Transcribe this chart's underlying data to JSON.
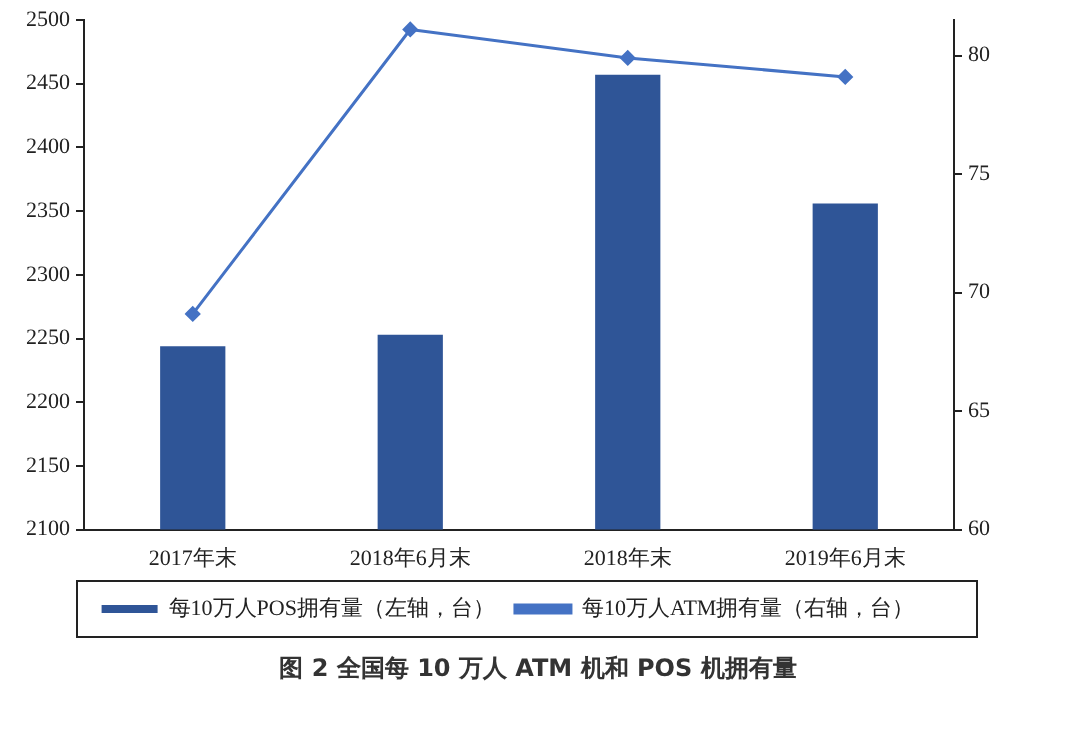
{
  "chart_data": {
    "type": "bar",
    "title": "图 2 全国每 10 万人 ATM 机和 POS 机拥有量",
    "categories": [
      "2017年末",
      "2018年6月末",
      "2018年末",
      "2019年6月末"
    ],
    "series": [
      {
        "name": "每10万人POS拥有量（左轴，台）",
        "color": "#2f5597",
        "values": [
          2244,
          2253,
          2457,
          2356
        ]
      },
      {
        "name": "每10万人ATM拥有量（右轴，台）",
        "type": "line",
        "axis": "y2",
        "color": "#4472c4",
        "marker": "diamond",
        "values": [
          69.1,
          81.1,
          79.9,
          79.1
        ]
      }
    ],
    "ylim": [
      2100,
      2500
    ],
    "yticks": [
      2100,
      2150,
      2200,
      2250,
      2300,
      2350,
      2400,
      2450,
      2500
    ],
    "y2lim": [
      60,
      81.5
    ],
    "y2ticks": [
      60,
      65,
      70,
      75,
      80
    ],
    "grid": false,
    "legend": "bottom"
  }
}
